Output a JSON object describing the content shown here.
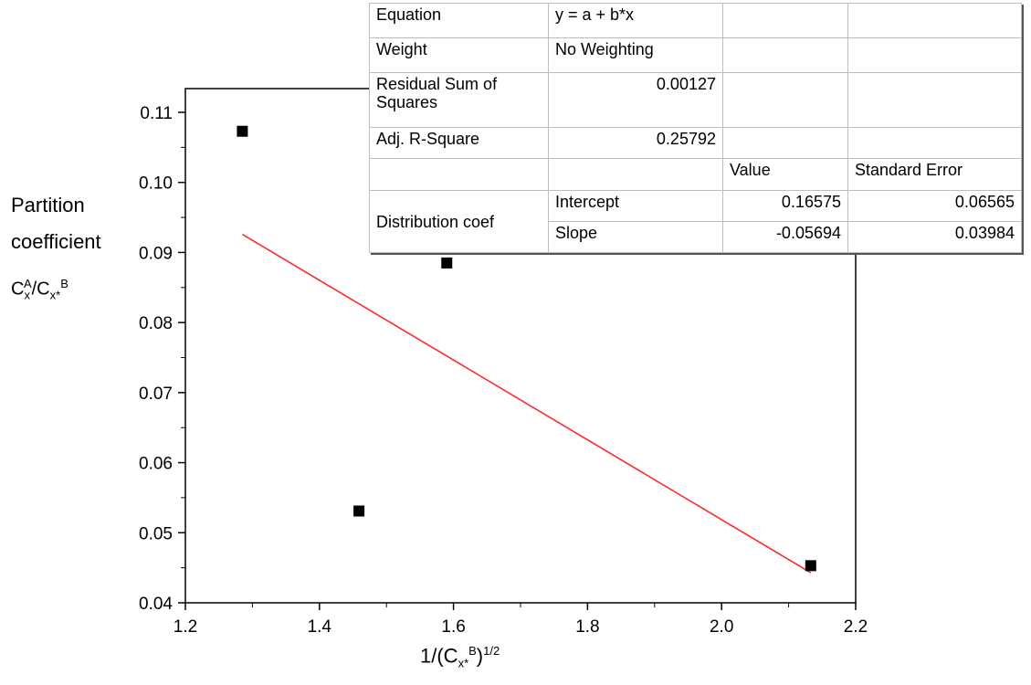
{
  "chart_data": {
    "type": "scatter",
    "xlabel": {
      "main": "1/(C",
      "sub": "x*",
      "sup_inner": "B",
      "close": ")",
      "sup": "1/2"
    },
    "ylabel": {
      "line1": "Partition",
      "line2": "coefficient",
      "sym_a": "C",
      "sym_a_sub": "x",
      "sym_a_sup": "A",
      "sym_b": "/C",
      "sym_b_sub": "x*",
      "sym_b_sup": "B"
    },
    "xlim": [
      1.2,
      2.2
    ],
    "ylim": [
      0.04,
      0.11
    ],
    "x_ticks": [
      "1.2",
      "1.4",
      "1.6",
      "1.8",
      "2.0",
      "2.2"
    ],
    "y_ticks": [
      "0.04",
      "0.05",
      "0.06",
      "0.07",
      "0.08",
      "0.09",
      "0.10",
      "0.11"
    ],
    "points": [
      {
        "x": 1.285,
        "y": 0.1073
      },
      {
        "x": 1.459,
        "y": 0.0531
      },
      {
        "x": 1.59,
        "y": 0.0885
      },
      {
        "x": 2.133,
        "y": 0.0453
      }
    ],
    "fit_line": {
      "x_start": 1.285,
      "x_end": 2.133,
      "intercept": 0.16575,
      "slope": -0.05694,
      "color": "#ff2a2a"
    },
    "marker_color": "#000000"
  },
  "stats_table": {
    "equation_label": "Equation",
    "equation_value": "y = a + b*x",
    "weight_label": "Weight",
    "weight_value": "No Weighting",
    "rss_label": "Residual Sum of Squares",
    "rss_value": "0.00127",
    "adjr_label": "Adj. R-Square",
    "adjr_value": "0.25792",
    "value_header": "Value",
    "se_header": "Standard Error",
    "group_label": "Distribution coef",
    "intercept_label": "Intercept",
    "intercept_value": "0.16575",
    "intercept_se": "0.06565",
    "slope_label": "Slope",
    "slope_value": "-0.05694",
    "slope_se": "0.03984"
  }
}
